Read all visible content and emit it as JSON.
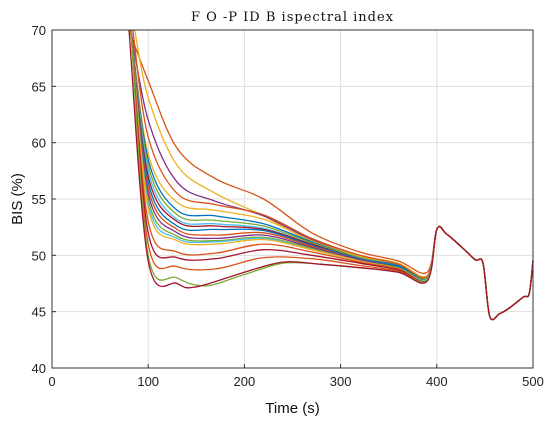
{
  "chart_data": {
    "type": "line",
    "title": "F O -P ID  B ispectral index",
    "xlabel": "Time (s)",
    "ylabel": "BIS (%)",
    "xlim": [
      0,
      500
    ],
    "ylim": [
      40,
      70
    ],
    "xticks": [
      0,
      100,
      200,
      300,
      400,
      500
    ],
    "yticks": [
      40,
      45,
      50,
      55,
      60,
      65,
      70
    ],
    "grid": true,
    "legend": "none",
    "common_tail": [
      [
        400,
        52.3
      ],
      [
        410,
        51.9
      ],
      [
        425,
        50.8
      ],
      [
        440,
        49.6
      ],
      [
        448,
        49.3
      ],
      [
        455,
        44.6
      ],
      [
        465,
        44.8
      ],
      [
        475,
        45.3
      ],
      [
        490,
        46.3
      ],
      [
        496,
        46.6
      ],
      [
        500,
        49.5
      ]
    ],
    "series": [
      {
        "color": "#d95319",
        "values": [
          [
            80,
            70
          ],
          [
            100,
            65.5
          ],
          [
            130,
            59.5
          ],
          [
            170,
            56.8
          ],
          [
            220,
            55
          ],
          [
            270,
            52
          ],
          [
            320,
            50.3
          ],
          [
            360,
            49.5
          ],
          [
            390,
            48.5
          ]
        ]
      },
      {
        "color": "#edb120",
        "values": [
          [
            86,
            70
          ],
          [
            100,
            64
          ],
          [
            130,
            58
          ],
          [
            170,
            55.5
          ],
          [
            220,
            53.5
          ],
          [
            270,
            51.2
          ],
          [
            320,
            50
          ],
          [
            360,
            49.3
          ],
          [
            390,
            48.2
          ]
        ]
      },
      {
        "color": "#7e2f8e",
        "values": [
          [
            82,
            70
          ],
          [
            100,
            62
          ],
          [
            130,
            56.5
          ],
          [
            170,
            54.8
          ],
          [
            220,
            53.5
          ],
          [
            270,
            51.4
          ],
          [
            320,
            50
          ],
          [
            360,
            49.2
          ],
          [
            390,
            48.1
          ]
        ]
      },
      {
        "color": "#d95319",
        "values": [
          [
            84,
            70
          ],
          [
            100,
            60.5
          ],
          [
            130,
            55.5
          ],
          [
            170,
            54.5
          ],
          [
            220,
            53.6
          ],
          [
            270,
            51.5
          ],
          [
            320,
            50
          ],
          [
            360,
            49.2
          ],
          [
            390,
            48.1
          ]
        ]
      },
      {
        "color": "#edb120",
        "values": [
          [
            82,
            70
          ],
          [
            100,
            59
          ],
          [
            130,
            54.7
          ],
          [
            170,
            54
          ],
          [
            220,
            53.2
          ],
          [
            270,
            51.3
          ],
          [
            320,
            49.9
          ],
          [
            360,
            49.1
          ],
          [
            390,
            48
          ]
        ]
      },
      {
        "color": "#0072bd",
        "values": [
          [
            82,
            70
          ],
          [
            100,
            58.5
          ],
          [
            130,
            54
          ],
          [
            170,
            53.5
          ],
          [
            220,
            52.8
          ],
          [
            270,
            51.2
          ],
          [
            320,
            49.8
          ],
          [
            360,
            49.1
          ],
          [
            390,
            48
          ]
        ]
      },
      {
        "color": "#77ac30",
        "values": [
          [
            82,
            70
          ],
          [
            100,
            58
          ],
          [
            130,
            53.6
          ],
          [
            170,
            53.1
          ],
          [
            220,
            52.6
          ],
          [
            270,
            51.1
          ],
          [
            320,
            49.8
          ],
          [
            360,
            49
          ],
          [
            390,
            48
          ]
        ]
      },
      {
        "color": "#4dbeee",
        "values": [
          [
            82,
            70
          ],
          [
            100,
            57.5
          ],
          [
            130,
            53.2
          ],
          [
            170,
            52.8
          ],
          [
            220,
            52.4
          ],
          [
            270,
            51
          ],
          [
            320,
            49.7
          ],
          [
            360,
            49
          ],
          [
            390,
            47.9
          ]
        ]
      },
      {
        "color": "#a2142f",
        "values": [
          [
            82,
            70
          ],
          [
            100,
            57
          ],
          [
            130,
            53
          ],
          [
            170,
            52.6
          ],
          [
            220,
            52.3
          ],
          [
            270,
            51
          ],
          [
            320,
            49.7
          ],
          [
            360,
            49
          ],
          [
            390,
            47.9
          ]
        ]
      },
      {
        "color": "#0072bd",
        "values": [
          [
            82,
            70
          ],
          [
            100,
            56.5
          ],
          [
            130,
            52.6
          ],
          [
            170,
            52.3
          ],
          [
            220,
            52.2
          ],
          [
            270,
            50.9
          ],
          [
            320,
            49.7
          ],
          [
            360,
            49
          ],
          [
            390,
            47.9
          ]
        ]
      },
      {
        "color": "#d95319",
        "values": [
          [
            82,
            70
          ],
          [
            100,
            56
          ],
          [
            130,
            52.3
          ],
          [
            170,
            51.8
          ],
          [
            220,
            52
          ],
          [
            270,
            50.8
          ],
          [
            320,
            49.6
          ],
          [
            360,
            48.9
          ],
          [
            390,
            47.9
          ]
        ]
      },
      {
        "color": "#7e2f8e",
        "values": [
          [
            82,
            70
          ],
          [
            100,
            55.5
          ],
          [
            130,
            52
          ],
          [
            170,
            51.5
          ],
          [
            220,
            51.8
          ],
          [
            270,
            50.7
          ],
          [
            320,
            49.6
          ],
          [
            360,
            48.9
          ],
          [
            390,
            47.9
          ]
        ]
      },
      {
        "color": "#77ac30",
        "values": [
          [
            82,
            70
          ],
          [
            100,
            55
          ],
          [
            130,
            51.7
          ],
          [
            170,
            51.3
          ],
          [
            220,
            51.6
          ],
          [
            270,
            50.6
          ],
          [
            320,
            49.5
          ],
          [
            360,
            48.9
          ],
          [
            390,
            47.9
          ]
        ]
      },
      {
        "color": "#4dbeee",
        "values": [
          [
            82,
            70
          ],
          [
            100,
            54.6
          ],
          [
            130,
            51.5
          ],
          [
            170,
            51.2
          ],
          [
            220,
            51.5
          ],
          [
            270,
            50.5
          ],
          [
            320,
            49.5
          ],
          [
            360,
            48.8
          ],
          [
            390,
            47.9
          ]
        ]
      },
      {
        "color": "#edb120",
        "values": [
          [
            82,
            70
          ],
          [
            100,
            54.2
          ],
          [
            130,
            51.3
          ],
          [
            170,
            51
          ],
          [
            220,
            51.4
          ],
          [
            270,
            50.5
          ],
          [
            320,
            49.5
          ],
          [
            360,
            48.8
          ],
          [
            390,
            47.8
          ]
        ]
      },
      {
        "color": "#d95319",
        "values": [
          [
            82,
            70
          ],
          [
            100,
            53
          ],
          [
            130,
            50.3
          ],
          [
            170,
            50.2
          ],
          [
            220,
            51
          ],
          [
            270,
            50.3
          ],
          [
            320,
            49.4
          ],
          [
            360,
            48.8
          ],
          [
            390,
            47.8
          ]
        ]
      },
      {
        "color": "#a2142f",
        "values": [
          [
            82,
            70
          ],
          [
            100,
            52
          ],
          [
            130,
            49.8
          ],
          [
            170,
            49.7
          ],
          [
            220,
            50.5
          ],
          [
            270,
            50
          ],
          [
            320,
            49.3
          ],
          [
            360,
            48.7
          ],
          [
            390,
            47.8
          ]
        ]
      },
      {
        "color": "#d95319",
        "values": [
          [
            82,
            70
          ],
          [
            100,
            51
          ],
          [
            130,
            49
          ],
          [
            170,
            48.8
          ],
          [
            220,
            49.8
          ],
          [
            270,
            49.7
          ],
          [
            320,
            49.1
          ],
          [
            360,
            48.6
          ],
          [
            390,
            47.8
          ]
        ]
      },
      {
        "color": "#77ac30",
        "values": [
          [
            82,
            70
          ],
          [
            100,
            50
          ],
          [
            130,
            48
          ],
          [
            160,
            47.3
          ],
          [
            200,
            48.3
          ],
          [
            240,
            49.3
          ],
          [
            280,
            49.2
          ],
          [
            320,
            48.9
          ],
          [
            360,
            48.5
          ],
          [
            390,
            47.8
          ]
        ]
      },
      {
        "color": "#a2142f",
        "values": [
          [
            80,
            70
          ],
          [
            100,
            49.5
          ],
          [
            130,
            47.5
          ],
          [
            150,
            47.2
          ],
          [
            200,
            48.5
          ],
          [
            240,
            49.4
          ],
          [
            280,
            49.2
          ],
          [
            320,
            48.9
          ],
          [
            360,
            48.5
          ],
          [
            390,
            47.7
          ]
        ]
      }
    ]
  }
}
